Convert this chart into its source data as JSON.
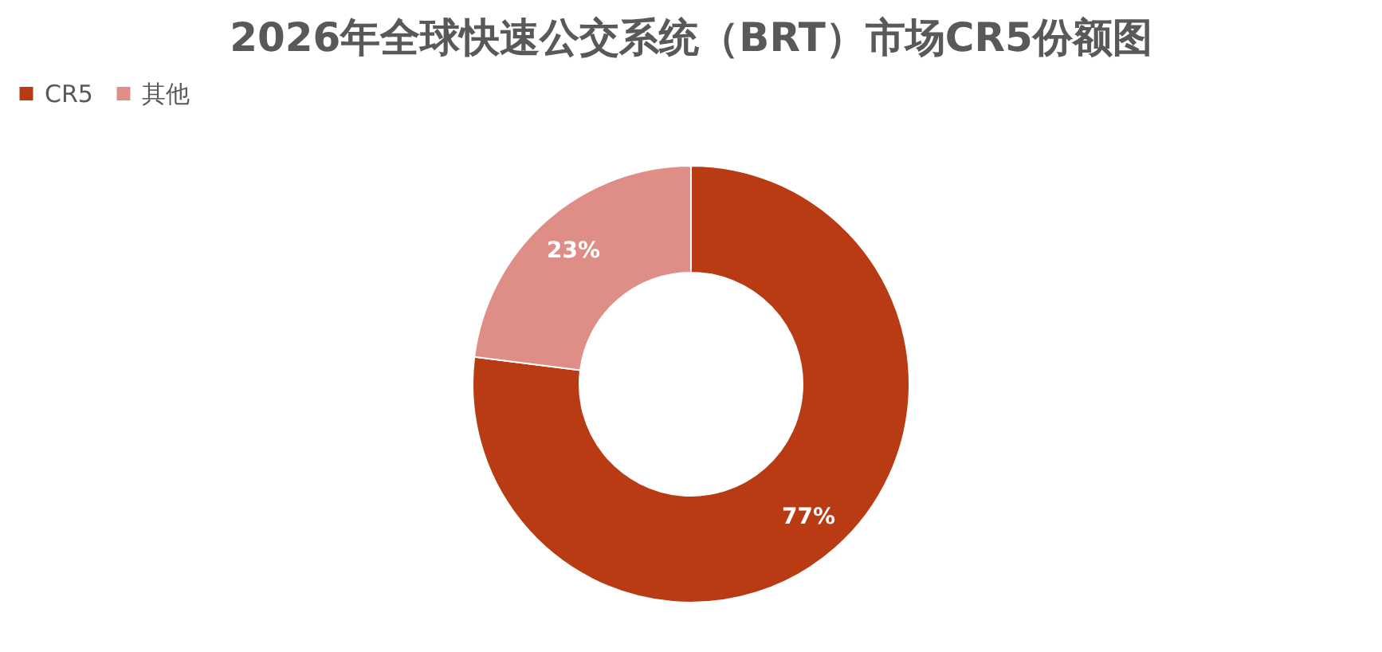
{
  "chart_data": {
    "type": "donut",
    "title": "2026年全球快速公交系统（BRT）市场CR5份额图",
    "categories": [
      "CR5",
      "其他"
    ],
    "values": [
      77,
      23
    ],
    "colors": [
      "#b83b13",
      "#de8e86"
    ],
    "value_labels": [
      "77%",
      "23%"
    ],
    "legend": "top"
  }
}
